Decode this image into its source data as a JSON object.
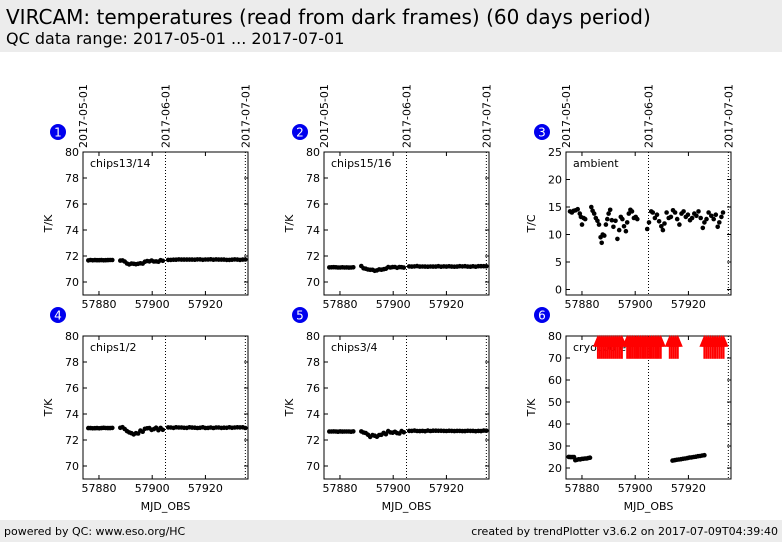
{
  "header": {
    "title": "VIRCAM: temperatures (read from dark frames) (60 days period)",
    "subtitle": "QC data range: 2017-05-01 ... 2017-07-01"
  },
  "footer": {
    "left": "powered by QC: www.eso.org/HC",
    "right": "created by trendPlotter v3.6.2 on 2017-07-09T04:39:40"
  },
  "colors": {
    "points": "#000000",
    "arrows": "#ff0000",
    "badge": "#0000ee",
    "band": "#ececec"
  },
  "chart_data": [
    {
      "id": 1,
      "type": "scatter",
      "label": "chips13/14",
      "ylabel": "T/K",
      "xlabel": "",
      "xlim": [
        57874,
        57936
      ],
      "ylim": [
        69,
        80
      ],
      "xticks": [
        57880,
        57900,
        57920
      ],
      "yticks": [
        70,
        72,
        74,
        76,
        78,
        80
      ],
      "date_ticks": [
        {
          "x": 57874,
          "label": "2017-05-01"
        },
        {
          "x": 57905,
          "label": "2017-06-01"
        },
        {
          "x": 57935,
          "label": "2017-07-01"
        }
      ],
      "segments": [
        {
          "x0": 57876,
          "x1": 57885,
          "n": 12,
          "base": 71.68,
          "amp": 0.06
        },
        {
          "x0": 57888,
          "x1": 57904,
          "n": 20,
          "base": 71.6,
          "amp": 0.3,
          "dip": true
        },
        {
          "x0": 57906,
          "x1": 57935,
          "n": 30,
          "base": 71.72,
          "amp": 0.1
        }
      ]
    },
    {
      "id": 2,
      "type": "scatter",
      "label": "chips15/16",
      "ylabel": "T/K",
      "xlabel": "",
      "xlim": [
        57874,
        57936
      ],
      "ylim": [
        69,
        80
      ],
      "xticks": [
        57880,
        57900,
        57920
      ],
      "yticks": [
        70,
        72,
        74,
        76,
        78,
        80
      ],
      "date_ticks": [
        {
          "x": 57874,
          "label": "2017-05-01"
        },
        {
          "x": 57905,
          "label": "2017-06-01"
        },
        {
          "x": 57935,
          "label": "2017-07-01"
        }
      ],
      "segments": [
        {
          "x0": 57876,
          "x1": 57885,
          "n": 12,
          "base": 71.12,
          "amp": 0.06
        },
        {
          "x0": 57888,
          "x1": 57904,
          "n": 20,
          "base": 71.1,
          "amp": 0.3,
          "dip": true
        },
        {
          "x0": 57906,
          "x1": 57935,
          "n": 30,
          "base": 71.2,
          "amp": 0.1
        }
      ]
    },
    {
      "id": 3,
      "type": "scatter",
      "label": "ambient",
      "ylabel": "T/C",
      "xlabel": "",
      "xlim": [
        57874,
        57936
      ],
      "ylim": [
        -1,
        25
      ],
      "xticks": [
        57880,
        57900,
        57920
      ],
      "yticks": [
        0,
        5,
        10,
        15,
        20,
        25
      ],
      "date_ticks": [
        {
          "x": 57874,
          "label": "2017-05-01"
        },
        {
          "x": 57905,
          "label": "2017-06-01"
        },
        {
          "x": 57935,
          "label": "2017-07-01"
        }
      ],
      "points": [
        [
          57875.5,
          14.2
        ],
        [
          57876.2,
          14.0
        ],
        [
          57876.9,
          14.3
        ],
        [
          57877.6,
          14.4
        ],
        [
          57878.4,
          14.6
        ],
        [
          57879.2,
          13.8
        ],
        [
          57879.6,
          13.2
        ],
        [
          57880.0,
          11.8
        ],
        [
          57880.6,
          13.0
        ],
        [
          57881.2,
          12.8
        ],
        [
          57883.5,
          15.0
        ],
        [
          57884.0,
          14.3
        ],
        [
          57884.6,
          13.8
        ],
        [
          57885.2,
          13.0
        ],
        [
          57885.8,
          12.5
        ],
        [
          57886.4,
          11.8
        ],
        [
          57887.0,
          9.5
        ],
        [
          57887.4,
          8.5
        ],
        [
          57887.8,
          10.0
        ],
        [
          57888.4,
          9.8
        ],
        [
          57889.0,
          11.8
        ],
        [
          57889.5,
          12.8
        ],
        [
          57890.0,
          13.8
        ],
        [
          57890.6,
          14.5
        ],
        [
          57891.2,
          12.6
        ],
        [
          57891.8,
          11.4
        ],
        [
          57892.6,
          12.5
        ],
        [
          57893.3,
          9.2
        ],
        [
          57894.0,
          10.8
        ],
        [
          57894.6,
          13.2
        ],
        [
          57895.2,
          12.8
        ],
        [
          57895.8,
          11.5
        ],
        [
          57896.5,
          10.6
        ],
        [
          57897.0,
          12.2
        ],
        [
          57897.6,
          13.8
        ],
        [
          57898.2,
          14.5
        ],
        [
          57898.8,
          14.2
        ],
        [
          57899.5,
          13.0
        ],
        [
          57900.2,
          13.2
        ],
        [
          57900.8,
          12.8
        ],
        [
          57904.5,
          11.0
        ],
        [
          57905.2,
          12.2
        ],
        [
          57906.0,
          14.2
        ],
        [
          57906.6,
          14.0
        ],
        [
          57907.4,
          13.0
        ],
        [
          57908.2,
          13.6
        ],
        [
          57909.0,
          12.4
        ],
        [
          57909.8,
          11.5
        ],
        [
          57910.4,
          10.8
        ],
        [
          57911.0,
          12.0
        ],
        [
          57911.8,
          14.0
        ],
        [
          57912.6,
          13.0
        ],
        [
          57913.4,
          13.2
        ],
        [
          57914.2,
          14.4
        ],
        [
          57915.0,
          14.0
        ],
        [
          57915.8,
          12.8
        ],
        [
          57916.6,
          11.8
        ],
        [
          57917.4,
          13.8
        ],
        [
          57918.2,
          14.2
        ],
        [
          57919.0,
          13.2
        ],
        [
          57919.8,
          13.6
        ],
        [
          57920.6,
          12.6
        ],
        [
          57921.4,
          13.0
        ],
        [
          57922.2,
          13.8
        ],
        [
          57923.0,
          13.4
        ],
        [
          57923.8,
          14.2
        ],
        [
          57924.6,
          13.0
        ],
        [
          57925.4,
          11.2
        ],
        [
          57926.0,
          12.2
        ],
        [
          57926.8,
          12.8
        ],
        [
          57927.6,
          14.0
        ],
        [
          57928.6,
          13.4
        ],
        [
          57929.5,
          12.8
        ],
        [
          57930.3,
          13.6
        ],
        [
          57931.0,
          11.4
        ],
        [
          57931.6,
          12.2
        ],
        [
          57932.4,
          13.2
        ],
        [
          57933.0,
          14.0
        ]
      ]
    },
    {
      "id": 4,
      "type": "scatter",
      "label": "chips1/2",
      "ylabel": "T/K",
      "xlabel": "MJD_OBS",
      "xlim": [
        57874,
        57936
      ],
      "ylim": [
        69,
        80
      ],
      "xticks": [
        57880,
        57900,
        57920
      ],
      "yticks": [
        70,
        72,
        74,
        76,
        78,
        80
      ],
      "segments": [
        {
          "x0": 57876,
          "x1": 57885,
          "n": 12,
          "base": 72.92,
          "amp": 0.08
        },
        {
          "x0": 57888,
          "x1": 57904,
          "n": 20,
          "base": 72.85,
          "amp": 0.4,
          "dip": true
        },
        {
          "x0": 57906,
          "x1": 57935,
          "n": 30,
          "base": 72.95,
          "amp": 0.12
        }
      ]
    },
    {
      "id": 5,
      "type": "scatter",
      "label": "chips3/4",
      "ylabel": "T/K",
      "xlabel": "MJD_OBS",
      "xlim": [
        57874,
        57936
      ],
      "ylim": [
        69,
        80
      ],
      "xticks": [
        57880,
        57900,
        57920
      ],
      "yticks": [
        70,
        72,
        74,
        76,
        78,
        80
      ],
      "segments": [
        {
          "x0": 57876,
          "x1": 57885,
          "n": 12,
          "base": 72.65,
          "amp": 0.06
        },
        {
          "x0": 57888,
          "x1": 57904,
          "n": 20,
          "base": 72.6,
          "amp": 0.4,
          "dip": true
        },
        {
          "x0": 57906,
          "x1": 57935,
          "n": 30,
          "base": 72.7,
          "amp": 0.1
        }
      ]
    },
    {
      "id": 6,
      "type": "scatter",
      "label": "cryocooler",
      "ylabel": "T/K",
      "xlabel": "MJD_OBS",
      "xlim": [
        57874,
        57936
      ],
      "ylim": [
        15,
        80
      ],
      "xticks": [
        57880,
        57900,
        57920
      ],
      "yticks": [
        20,
        30,
        40,
        50,
        60,
        70,
        80
      ],
      "segments": [
        {
          "x0": 57875,
          "x1": 57877,
          "n": 4,
          "base": 25.0,
          "amp": 0.4
        },
        {
          "x0": 57877.5,
          "x1": 57883,
          "n": 10,
          "base": 23.6,
          "amp": 0.6,
          "slope": 1.0
        },
        {
          "x0": 57914,
          "x1": 57926,
          "n": 16,
          "base": 23.4,
          "amp": 0.2,
          "slope": 2.4
        }
      ],
      "off_scale": {
        "marker": "arrow-up",
        "y": 76,
        "ranges": [
          [
            57886,
            57895,
            0.75
          ],
          [
            57897,
            57910,
            0.7
          ],
          [
            57913,
            57916,
            0.75
          ],
          [
            57926,
            57934,
            0.8
          ]
        ]
      }
    }
  ]
}
